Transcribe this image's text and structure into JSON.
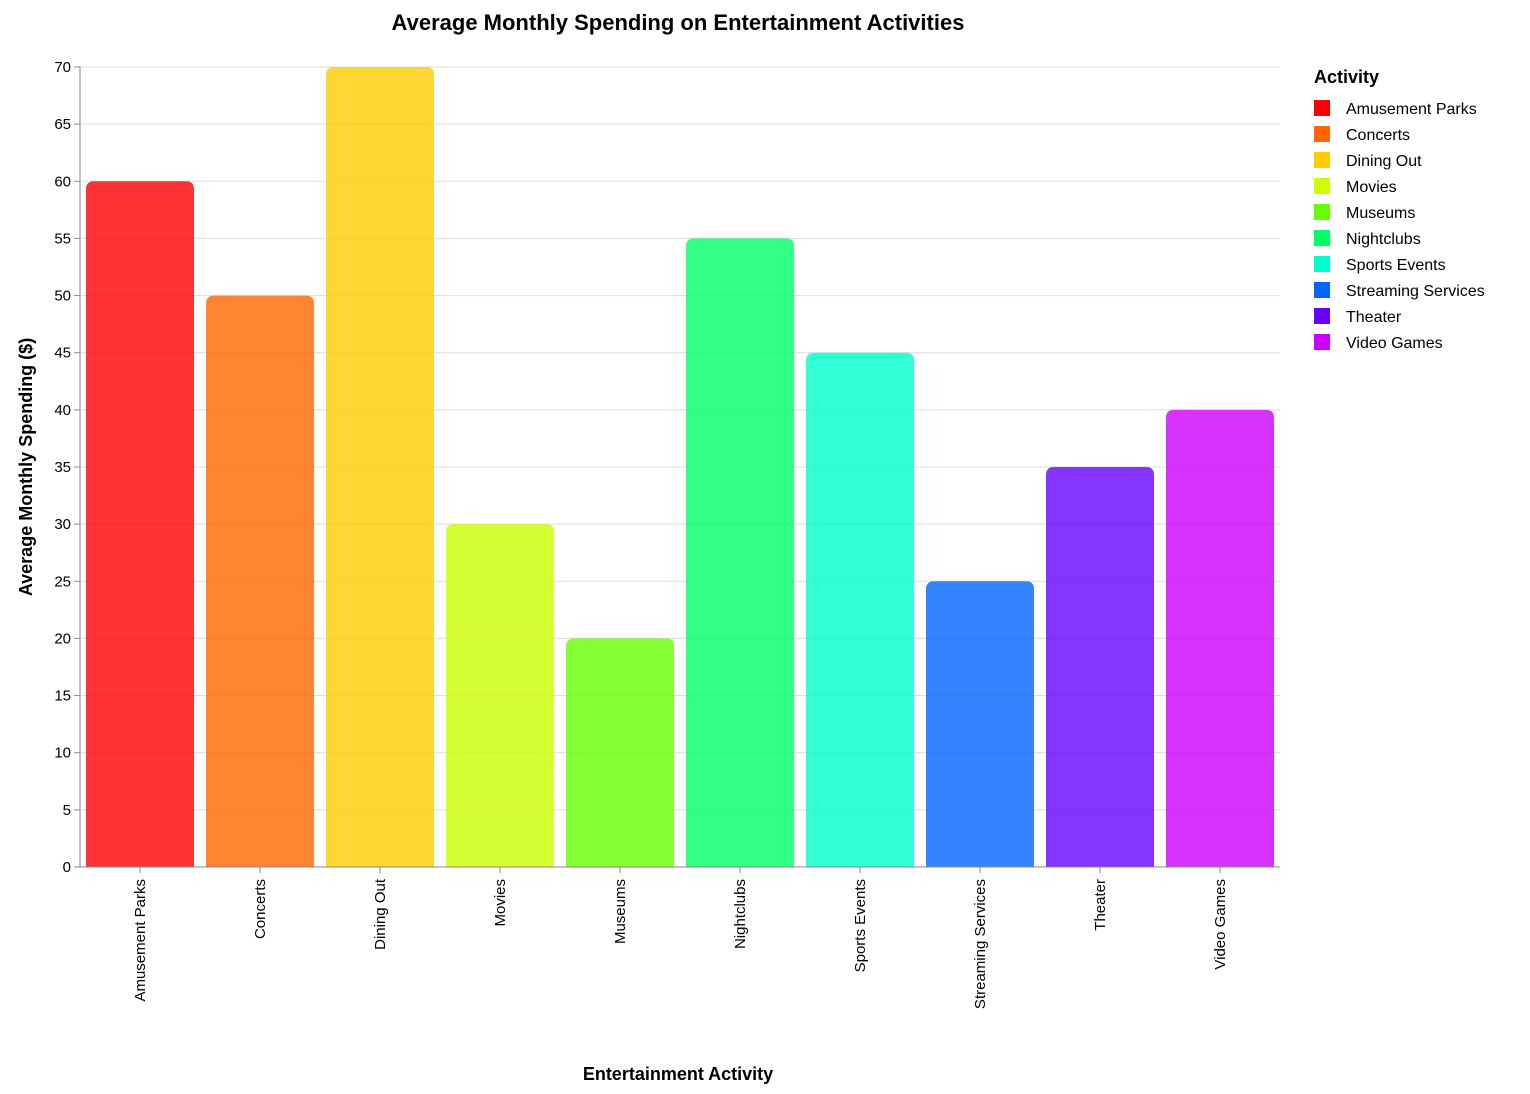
{
  "chart_data": {
    "type": "bar",
    "title": "Average Monthly Spending on Entertainment Activities",
    "xlabel": "Entertainment Activity",
    "ylabel": "Average Monthly Spending ($)",
    "ylim": [
      0,
      70
    ],
    "yticks": [
      0,
      5,
      10,
      15,
      20,
      25,
      30,
      35,
      40,
      45,
      50,
      55,
      60,
      65,
      70
    ],
    "grid": true,
    "legend_title": "Activity",
    "legend_position": "right",
    "categories": [
      "Amusement Parks",
      "Concerts",
      "Dining Out",
      "Movies",
      "Museums",
      "Nightclubs",
      "Sports Events",
      "Streaming Services",
      "Theater",
      "Video Games"
    ],
    "values": [
      60,
      50,
      70,
      30,
      20,
      55,
      45,
      25,
      35,
      40
    ],
    "colors": [
      "#ff0000",
      "#ff6600",
      "#ffcc00",
      "#ccff00",
      "#66ff00",
      "#00ff66",
      "#00ffcc",
      "#0066ff",
      "#6600ff",
      "#cc00ff"
    ]
  }
}
